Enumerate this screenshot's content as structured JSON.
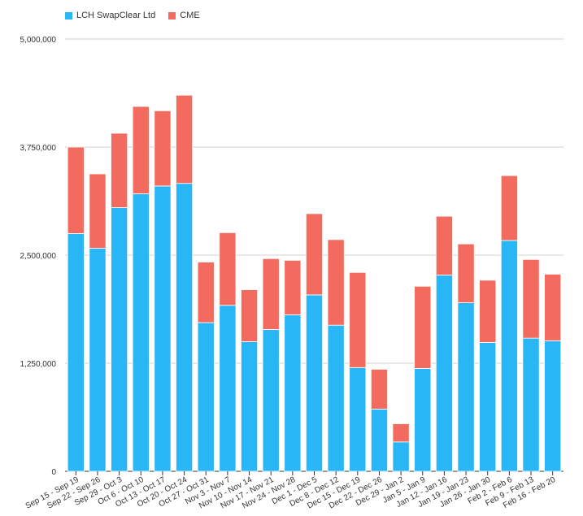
{
  "chart_data": {
    "type": "bar",
    "stacked": true,
    "categories": [
      "Sep 15 - Sep 19",
      "Sep 22 - Sep 26",
      "Sep 29 - Oct 3",
      "Oct 6 - Oct 10",
      "Oct 13 - Oct 17",
      "Oct 20 - Oct 24",
      "Oct 27 - Oct 31",
      "Nov 3 - Nov 7",
      "Nov 10 - Nov 14",
      "Nov 17 - Nov 21",
      "Nov 24 - Nov 28",
      "Dec 1 - Dec 5",
      "Dec 8 - Dec 12",
      "Dec 15 - Dec 19",
      "Dec 22 - Dec 26",
      "Dec 29 - Jan 2",
      "Jan 5 - Jan 9",
      "Jan 12 - Jan 16",
      "Jan 19 - Jan 23",
      "Jan 26 - Jan 30",
      "Feb 2 - Feb 6",
      "Feb 9 - Feb 13",
      "Feb 16 - Feb 20"
    ],
    "series": [
      {
        "name": "LCH SwapClear Ltd",
        "color": "#29b6f6",
        "values": [
          2750000,
          2580000,
          3050000,
          3210000,
          3300000,
          3330000,
          1720000,
          1920000,
          1500000,
          1640000,
          1810000,
          2040000,
          1690000,
          1200000,
          720000,
          340000,
          1190000,
          2270000,
          1950000,
          1490000,
          2670000,
          1540000,
          1510000
        ]
      },
      {
        "name": "CME",
        "color": "#f26b5e",
        "values": [
          1000000,
          860000,
          860000,
          1010000,
          870000,
          1020000,
          700000,
          840000,
          600000,
          820000,
          630000,
          940000,
          990000,
          1100000,
          460000,
          210000,
          950000,
          680000,
          680000,
          720000,
          750000,
          910000,
          770000
        ]
      }
    ],
    "ylim": [
      0,
      5000000
    ],
    "yticks": [
      0,
      1250000,
      2500000,
      3750000,
      5000000
    ],
    "ytick_labels": [
      "0",
      "1,250,000",
      "2,500,000",
      "3,750,000",
      "5,000,000"
    ],
    "grid": true,
    "legend": "top-left",
    "title": "",
    "xlabel": "",
    "ylabel": ""
  }
}
